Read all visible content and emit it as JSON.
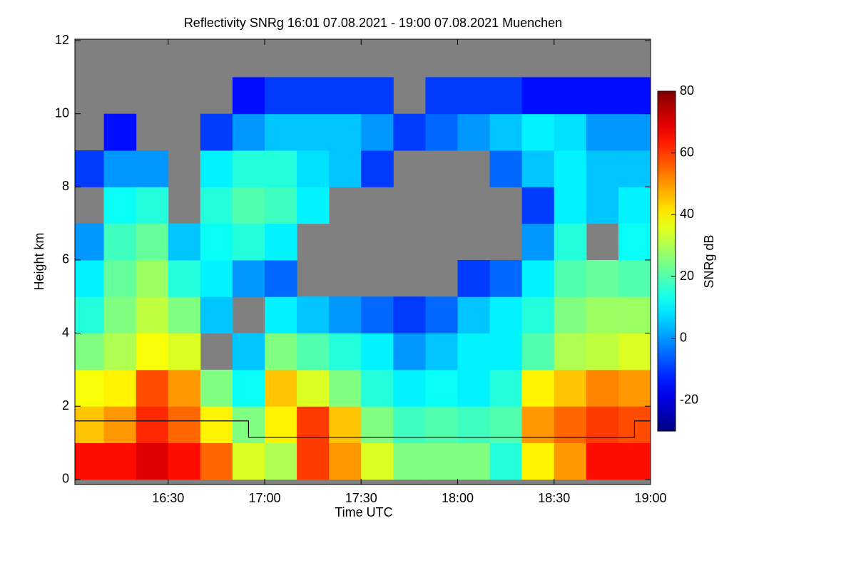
{
  "chart_data": {
    "type": "heatmap",
    "title": "Reflectivity SNRg   16:01 07.08.2021 - 19:00 07.08.2021 Muenchen",
    "x_label": "Time UTC",
    "y_label": "Height km",
    "colorbar_label": "SNRg dB",
    "colormap": "jet",
    "missing_color": "#808080",
    "x": [
      965,
      975,
      985,
      995,
      1005,
      1015,
      1025,
      1035,
      1045,
      1055,
      1065,
      1075,
      1085,
      1095,
      1105,
      1115,
      1125,
      1135
    ],
    "y": [
      0.5,
      1.5,
      2.5,
      3.5,
      4.5,
      5.5,
      6.5,
      7.5,
      8.5,
      9.5,
      10.5,
      11.5
    ],
    "z": [
      [
        65,
        45,
        38,
        25,
        15,
        10,
        0,
        null,
        -10,
        null,
        null,
        null
      ],
      [
        65,
        50,
        40,
        30,
        25,
        22,
        18,
        12,
        0,
        -15,
        null,
        null
      ],
      [
        70,
        62,
        58,
        38,
        32,
        28,
        22,
        15,
        0,
        null,
        null,
        null
      ],
      [
        65,
        55,
        50,
        35,
        25,
        15,
        5,
        null,
        null,
        null,
        null,
        null
      ],
      [
        55,
        40,
        25,
        null,
        5,
        10,
        12,
        15,
        10,
        -10,
        null,
        null
      ],
      [
        35,
        25,
        12,
        5,
        null,
        0,
        15,
        20,
        15,
        0,
        -15,
        null
      ],
      [
        30,
        40,
        45,
        25,
        10,
        -5,
        10,
        18,
        15,
        5,
        -10,
        null
      ],
      [
        60,
        60,
        35,
        20,
        5,
        null,
        null,
        10,
        8,
        5,
        -10,
        null
      ],
      [
        50,
        45,
        25,
        15,
        0,
        null,
        null,
        null,
        5,
        5,
        -10,
        null
      ],
      [
        35,
        25,
        15,
        10,
        -5,
        null,
        null,
        null,
        -10,
        0,
        -10,
        null
      ],
      [
        25,
        18,
        10,
        0,
        -10,
        null,
        null,
        null,
        null,
        -10,
        null,
        null
      ],
      [
        25,
        20,
        12,
        5,
        -5,
        null,
        null,
        null,
        null,
        -5,
        -10,
        null
      ],
      [
        25,
        18,
        10,
        10,
        5,
        -10,
        null,
        null,
        null,
        0,
        -10,
        null
      ],
      [
        15,
        20,
        15,
        10,
        10,
        -5,
        null,
        null,
        -5,
        5,
        -10,
        null
      ],
      [
        40,
        50,
        40,
        20,
        15,
        10,
        0,
        -10,
        5,
        10,
        -15,
        null
      ],
      [
        50,
        55,
        45,
        30,
        25,
        20,
        15,
        10,
        10,
        8,
        -15,
        null
      ],
      [
        65,
        60,
        52,
        32,
        28,
        22,
        null,
        5,
        5,
        0,
        -15,
        null
      ],
      [
        65,
        58,
        50,
        35,
        28,
        20,
        12,
        10,
        5,
        0,
        -15,
        null
      ]
    ],
    "zlim": [
      -30,
      80
    ],
    "zticks": [
      -20,
      0,
      20,
      40,
      60,
      80
    ],
    "xlim": [
      961,
      1140
    ],
    "xticks": [
      {
        "value": 990,
        "label": "16:30"
      },
      {
        "value": 1020,
        "label": "17:00"
      },
      {
        "value": 1050,
        "label": "17:30"
      },
      {
        "value": 1080,
        "label": "18:00"
      },
      {
        "value": 1110,
        "label": "18:30"
      },
      {
        "value": 1140,
        "label": "19:00"
      }
    ],
    "ylim": [
      -0.14,
      12.04
    ],
    "yticks": [
      0,
      2,
      4,
      6,
      8,
      10,
      12
    ],
    "overlay": {
      "type": "line",
      "color": "#000000",
      "x": [
        961,
        1015,
        1015,
        1135,
        1135,
        1140
      ],
      "values": [
        1.6,
        1.6,
        1.15,
        1.15,
        1.6,
        1.6
      ]
    }
  }
}
